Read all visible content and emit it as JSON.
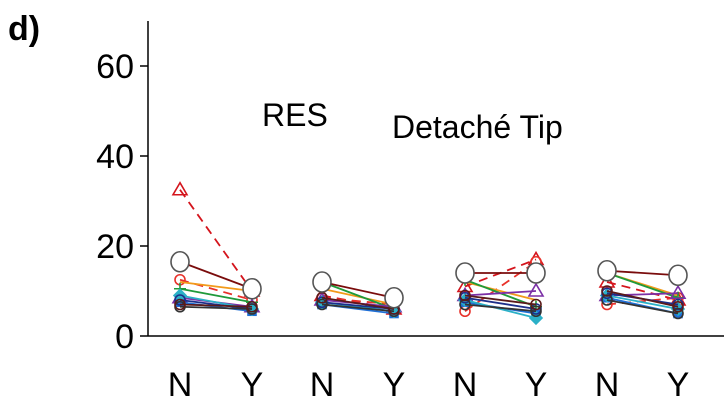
{
  "chart_data": {
    "type": "line",
    "panel_label": "d)",
    "annotations": [
      "RES",
      "Detaché Tip"
    ],
    "ylim": [
      0,
      70
    ],
    "yticks": [
      0,
      20,
      40,
      60
    ],
    "ytick_labels": [
      "0",
      "20",
      "40",
      "60"
    ],
    "categories": [
      "N",
      "Y",
      "N",
      "Y",
      "N",
      "Y",
      "N",
      "Y"
    ],
    "groups": 4,
    "series": [
      {
        "color": "#7a0c0c",
        "dash": false,
        "marker": "open-circle",
        "values": [
          16.5,
          10.5,
          12,
          8.5,
          14,
          14,
          14.5,
          13.5
        ]
      },
      {
        "color": "#d4141c",
        "dash": true,
        "marker": "triangle",
        "values": [
          32.5,
          10,
          9,
          6,
          11,
          17,
          12,
          8
        ]
      },
      {
        "color": "#e8312a",
        "dash": true,
        "marker": "circle",
        "values": [
          12.5,
          8,
          8.5,
          7,
          5.5,
          16.5,
          7,
          8.5
        ]
      },
      {
        "color": "#f29a1a",
        "dash": false,
        "marker": "none",
        "values": [
          12,
          10,
          10.5,
          7,
          12,
          8,
          14,
          9
        ]
      },
      {
        "color": "#1f9a3a",
        "dash": false,
        "marker": "plus",
        "values": [
          10.5,
          7.5,
          12,
          6,
          12.5,
          6.5,
          14,
          8.5
        ]
      },
      {
        "color": "#7b2fa6",
        "dash": false,
        "marker": "triangle",
        "values": [
          8.5,
          6.5,
          8,
          6.5,
          9,
          10,
          9,
          9.5
        ]
      },
      {
        "color": "#1f6fd6",
        "dash": false,
        "marker": "square",
        "values": [
          7.5,
          5.5,
          7,
          5,
          7.5,
          5,
          8.5,
          5
        ]
      },
      {
        "color": "#2bb0c7",
        "dash": false,
        "marker": "diamond",
        "values": [
          9,
          6,
          7.5,
          5.5,
          8,
          4,
          9,
          6
        ]
      },
      {
        "color": "#1c2f8a",
        "dash": false,
        "marker": "circle",
        "values": [
          8,
          6,
          7.5,
          6,
          8.5,
          6,
          9.5,
          7
        ]
      },
      {
        "color": "#333333",
        "dash": false,
        "marker": "circle",
        "values": [
          6.5,
          6,
          7,
          5.5,
          7,
          5.5,
          8,
          5
        ]
      },
      {
        "color": "#5a1a1a",
        "dash": false,
        "marker": "circle",
        "values": [
          7,
          6.5,
          8.5,
          6,
          9,
          7,
          10,
          6.5
        ]
      }
    ]
  }
}
